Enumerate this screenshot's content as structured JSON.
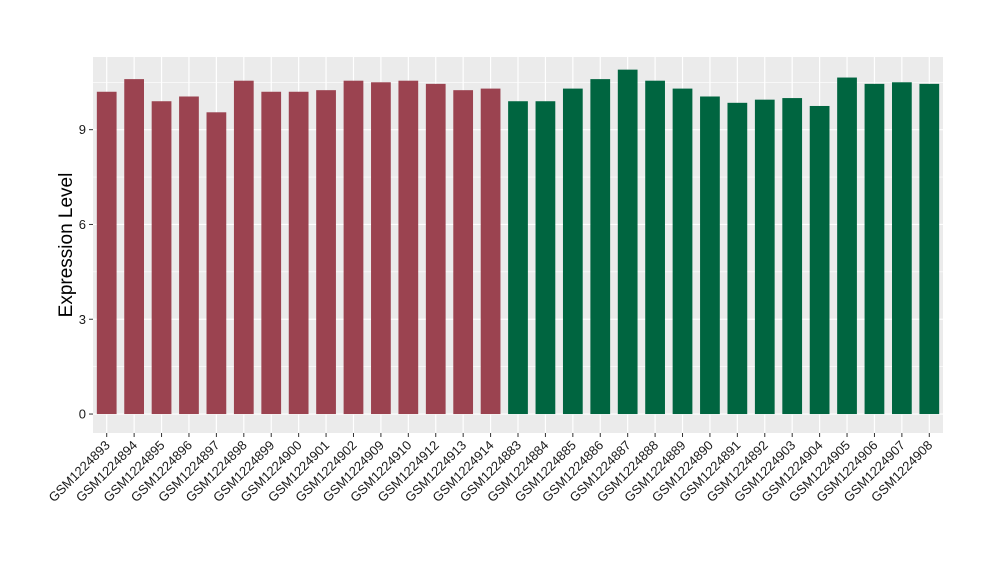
{
  "chart_data": {
    "type": "bar",
    "title": "",
    "xlabel": "",
    "ylabel": "Expression Level",
    "ylim": [
      -0.6,
      11.3
    ],
    "yticks": [
      0,
      3,
      6,
      9
    ],
    "grid": true,
    "legend": "none",
    "categories": [
      "GSM1224893",
      "GSM1224894",
      "GSM1224895",
      "GSM1224896",
      "GSM1224897",
      "GSM1224898",
      "GSM1224899",
      "GSM1224900",
      "GSM1224901",
      "GSM1224902",
      "GSM1224909",
      "GSM1224910",
      "GSM1224912",
      "GSM1224913",
      "GSM1224914",
      "GSM1224883",
      "GSM1224884",
      "GSM1224885",
      "GSM1224886",
      "GSM1224887",
      "GSM1224888",
      "GSM1224889",
      "GSM1224890",
      "GSM1224891",
      "GSM1224892",
      "GSM1224903",
      "GSM1224904",
      "GSM1224905",
      "GSM1224906",
      "GSM1224907",
      "GSM1224908"
    ],
    "values": [
      10.2,
      10.6,
      9.9,
      10.05,
      9.55,
      10.55,
      10.2,
      10.2,
      10.25,
      10.55,
      10.5,
      10.55,
      10.45,
      10.25,
      10.3,
      9.9,
      9.9,
      10.3,
      10.6,
      10.9,
      10.55,
      10.3,
      10.05,
      9.85,
      9.95,
      10.0,
      9.75,
      10.65,
      10.45,
      10.5,
      10.45
    ],
    "groups": [
      "A",
      "A",
      "A",
      "A",
      "A",
      "A",
      "A",
      "A",
      "A",
      "A",
      "A",
      "A",
      "A",
      "A",
      "A",
      "B",
      "B",
      "B",
      "B",
      "B",
      "B",
      "B",
      "B",
      "B",
      "B",
      "B",
      "B",
      "B",
      "B",
      "B",
      "B"
    ],
    "colors": {
      "A": "#9b4350",
      "B": "#006540",
      "panel": "#ebebeb",
      "grid": "#ffffff"
    }
  }
}
